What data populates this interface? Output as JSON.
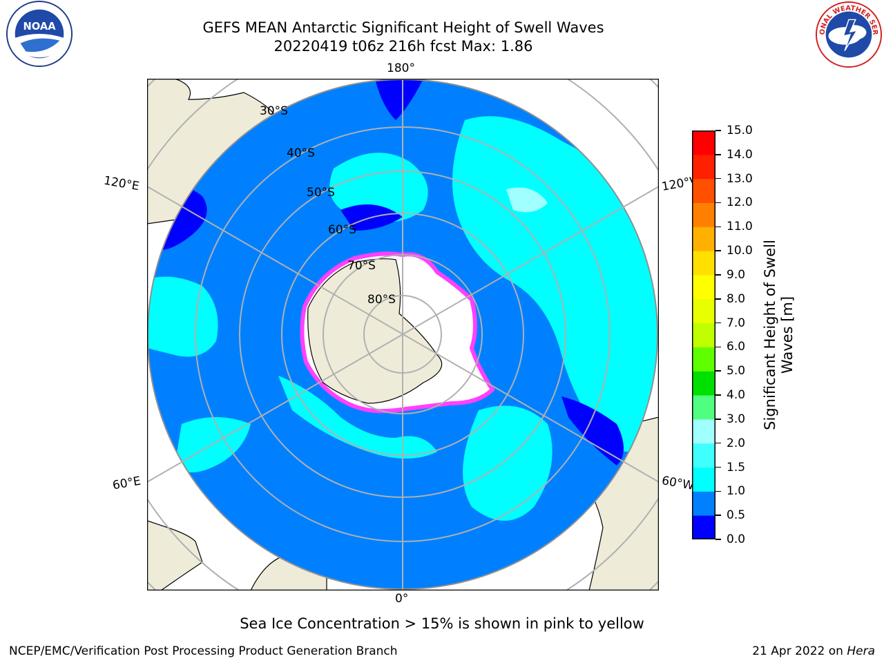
{
  "header": {
    "title_line1": "GEFS MEAN Antarctic Significant Height of Swell Waves",
    "title_line2": "20220419 t06z 216h fcst   Max: 1.86"
  },
  "map": {
    "projection": "South Polar Stereographic",
    "meridian_labels": {
      "top": "180°",
      "bottom": "0°",
      "upper_left": "120°E",
      "upper_right": "120°W",
      "lower_left": "60°E",
      "lower_right": "60°W"
    },
    "parallel_labels": [
      "30°S",
      "40°S",
      "50°S",
      "60°S",
      "70°S",
      "80°S"
    ],
    "colors": {
      "land": "#eeecd9",
      "ice_shelf": "#ffffff",
      "sea_ice_edge": "#ff40ff",
      "grid": "#b0b0b0"
    }
  },
  "colorbar": {
    "label": "Significant Height of Swell Waves [m]",
    "ticks": [
      "15.0",
      "14.0",
      "13.0",
      "12.0",
      "11.0",
      "10.0",
      "9.0",
      "8.0",
      "7.0",
      "6.0",
      "5.0",
      "4.0",
      "3.0",
      "2.0",
      "1.5",
      "1.0",
      "0.5",
      "0.0"
    ],
    "colors": [
      "#0000ff",
      "#0080ff",
      "#00ffff",
      "#40ffff",
      "#a0ffff",
      "#50ff80",
      "#00e000",
      "#60ff00",
      "#c0ff00",
      "#e8ff00",
      "#ffff00",
      "#ffe000",
      "#ffb000",
      "#ff8000",
      "#ff5000",
      "#ff2000",
      "#ff0000"
    ]
  },
  "footer": {
    "note": "Sea Ice Concentration > 15% is shown in pink to yellow",
    "branch": "NCEP/EMC/Verification Post Processing Product Generation Branch",
    "date": "21 Apr 2022 on ",
    "host": "Hera"
  },
  "logos": {
    "left": "NOAA",
    "right": "NATIONAL WEATHER SERVICE"
  }
}
